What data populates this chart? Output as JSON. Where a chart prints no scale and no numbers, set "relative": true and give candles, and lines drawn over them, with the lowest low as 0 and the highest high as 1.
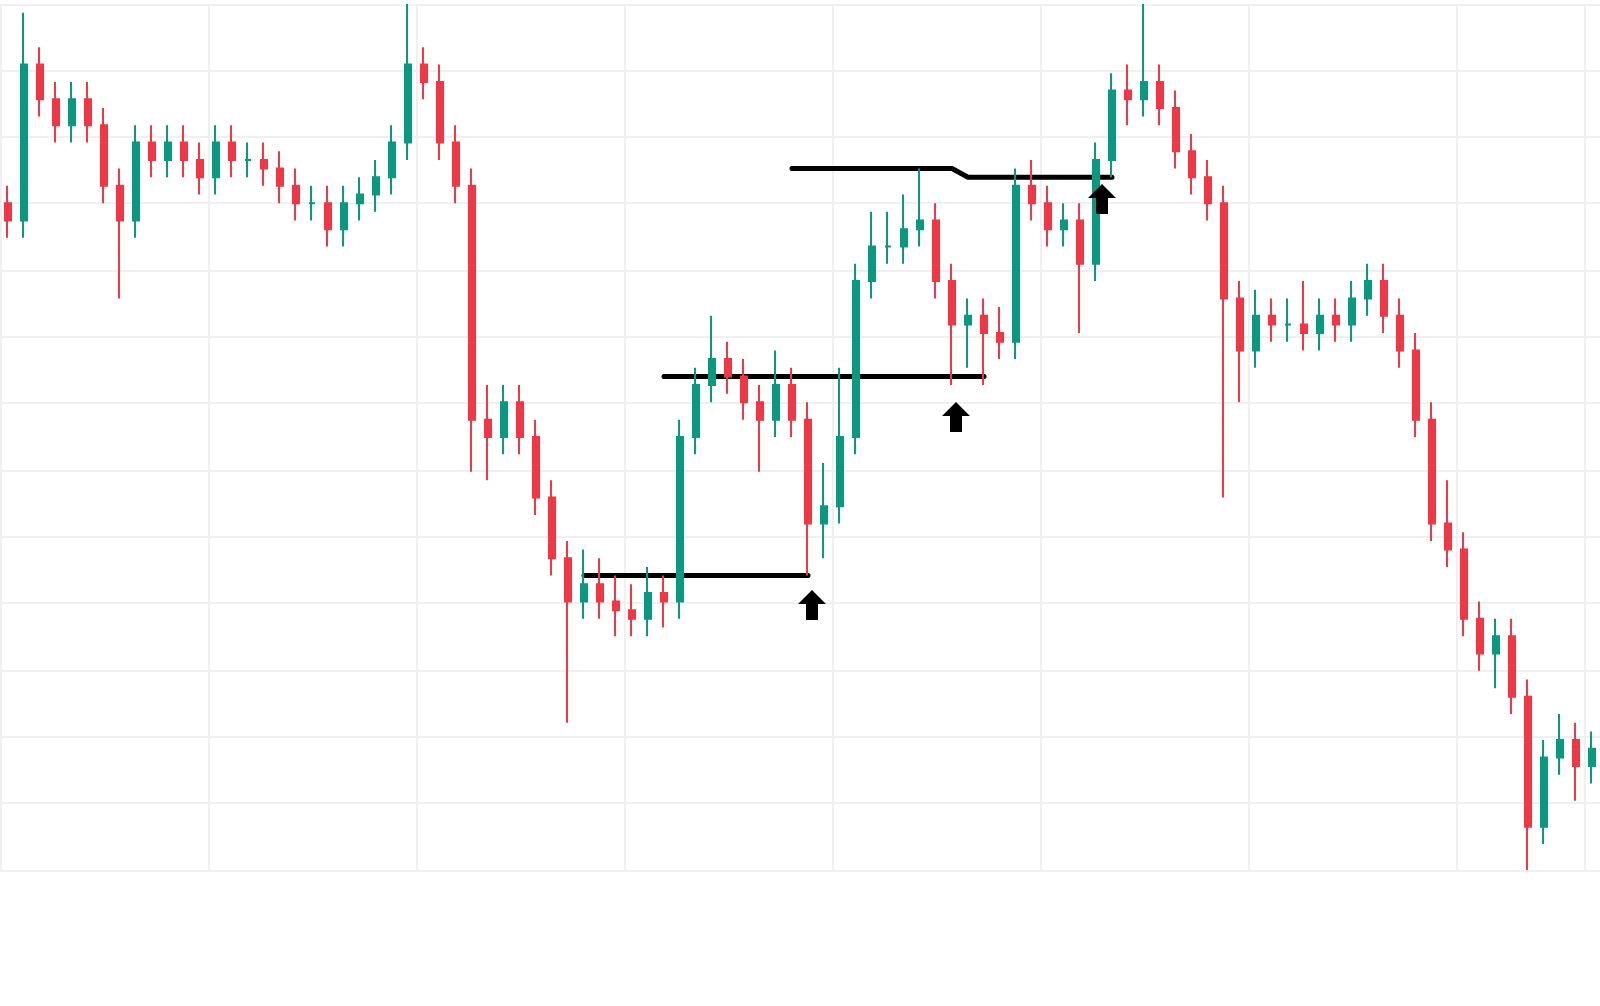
{
  "chart_data": {
    "type": "candlestick",
    "relative": true,
    "grid": true,
    "colors": [
      "#f23645",
      "#089981",
      "#f23645",
      "#f23645",
      "#089981",
      "#f23645",
      "#f23645",
      "#f23645",
      "#089981",
      "#f23645",
      "#089981",
      "#f23645",
      "#f23645",
      "#089981",
      "#f23645",
      "#089981",
      "#f23645",
      "#f23645",
      "#f23645",
      "#089981",
      "#f23645",
      "#089981",
      "#089981",
      "#089981",
      "#089981",
      "#089981",
      "#f23645",
      "#f23645",
      "#f23645",
      "#f23645",
      "#f23645",
      "#089981",
      "#f23645",
      "#f23645",
      "#f23645",
      "#f23645",
      "#089981",
      "#f23645",
      "#f23645",
      "#f23645",
      "#089981",
      "#f23645",
      "#089981",
      "#089981",
      "#089981",
      "#f23645",
      "#f23645",
      "#f23645",
      "#089981",
      "#f23645",
      "#f23645",
      "#089981",
      "#089981",
      "#089981",
      "#089981",
      "#089981",
      "#089981",
      "#089981",
      "#f23645",
      "#f23645",
      "#089981",
      "#f23645",
      "#f23645",
      "#089981",
      "#f23645",
      "#f23645",
      "#089981",
      "#f23645",
      "#089981",
      "#089981",
      "#f23645",
      "#089981",
      "#f23645",
      "#f23645",
      "#f23645",
      "#f23645",
      "#f23645",
      "#f23645",
      "#089981",
      "#f23645",
      "#089981",
      "#f23645",
      "#089981",
      "#f23645",
      "#089981",
      "#089981",
      "#f23645",
      "#f23645",
      "#f23645",
      "#f23645",
      "#f23645",
      "#f23645",
      "#f23645",
      "#089981",
      "#f23645",
      "#f23645",
      "#089981",
      "#089981",
      "#f23645",
      "#089981"
    ],
    "categories": [
      null,
      null,
      null,
      null,
      null,
      null,
      null,
      null,
      null,
      null,
      null,
      null,
      null,
      null,
      null,
      null,
      null,
      null,
      null,
      null,
      null,
      null,
      null,
      null,
      null,
      null,
      null,
      null,
      null,
      null,
      null,
      null,
      null,
      null,
      null,
      null,
      null,
      null,
      null,
      null,
      null,
      null,
      null,
      null,
      null,
      null,
      null,
      null,
      null,
      null,
      null,
      null,
      null,
      null,
      null,
      null,
      null,
      null,
      null,
      null,
      null,
      null,
      null,
      null,
      null,
      null,
      null,
      null,
      null,
      null,
      null,
      null,
      null,
      null,
      null,
      null,
      null,
      null,
      null,
      null,
      null,
      null,
      null,
      null,
      null,
      null,
      null,
      null,
      null,
      null,
      null,
      null,
      null,
      null,
      null,
      null,
      null,
      null,
      null,
      null
    ],
    "ohlc": [
      [
        0.77,
        0.79,
        0.73,
        0.75
      ],
      [
        0.75,
        0.99,
        0.73,
        0.93
      ],
      [
        0.93,
        0.95,
        0.87,
        0.89
      ],
      [
        0.89,
        0.91,
        0.84,
        0.86
      ],
      [
        0.86,
        0.91,
        0.84,
        0.89
      ],
      [
        0.89,
        0.91,
        0.84,
        0.86
      ],
      [
        0.86,
        0.88,
        0.77,
        0.79
      ],
      [
        0.79,
        0.81,
        0.66,
        0.75
      ],
      [
        0.75,
        0.86,
        0.73,
        0.84
      ],
      [
        0.84,
        0.86,
        0.8,
        0.82
      ],
      [
        0.82,
        0.86,
        0.8,
        0.84
      ],
      [
        0.84,
        0.86,
        0.8,
        0.82
      ],
      [
        0.82,
        0.84,
        0.78,
        0.8
      ],
      [
        0.8,
        0.86,
        0.78,
        0.84
      ],
      [
        0.84,
        0.86,
        0.8,
        0.82
      ],
      [
        0.82,
        0.84,
        0.8,
        0.82
      ],
      [
        0.82,
        0.84,
        0.79,
        0.81
      ],
      [
        0.81,
        0.83,
        0.77,
        0.79
      ],
      [
        0.79,
        0.81,
        0.75,
        0.77
      ],
      [
        0.77,
        0.79,
        0.75,
        0.77
      ],
      [
        0.77,
        0.79,
        0.72,
        0.74
      ],
      [
        0.74,
        0.79,
        0.72,
        0.77
      ],
      [
        0.77,
        0.8,
        0.75,
        0.78
      ],
      [
        0.78,
        0.82,
        0.76,
        0.8
      ],
      [
        0.8,
        0.86,
        0.78,
        0.84
      ],
      [
        0.84,
        1,
        0.82,
        0.93
      ],
      [
        0.93,
        0.95,
        0.89,
        0.91
      ],
      [
        0.91,
        0.93,
        0.82,
        0.84
      ],
      [
        0.84,
        0.86,
        0.77,
        0.79
      ],
      [
        0.79,
        0.81,
        0.46,
        0.52
      ],
      [
        0.52,
        0.56,
        0.45,
        0.5
      ],
      [
        0.5,
        0.56,
        0.48,
        0.54
      ],
      [
        0.54,
        0.56,
        0.48,
        0.5
      ],
      [
        0.5,
        0.52,
        0.41,
        0.43
      ],
      [
        0.43,
        0.45,
        0.34,
        0.36
      ],
      [
        0.36,
        0.38,
        0.17,
        0.31
      ],
      [
        0.31,
        0.37,
        0.29,
        0.33
      ],
      [
        0.33,
        0.36,
        0.29,
        0.31
      ],
      [
        0.31,
        0.34,
        0.27,
        0.3
      ],
      [
        0.3,
        0.33,
        0.27,
        0.29
      ],
      [
        0.29,
        0.35,
        0.27,
        0.32
      ],
      [
        0.32,
        0.34,
        0.28,
        0.31
      ],
      [
        0.31,
        0.52,
        0.29,
        0.5
      ],
      [
        0.5,
        0.58,
        0.48,
        0.56
      ],
      [
        0.56,
        0.64,
        0.54,
        0.59
      ],
      [
        0.59,
        0.61,
        0.55,
        0.57
      ],
      [
        0.57,
        0.59,
        0.52,
        0.54
      ],
      [
        0.54,
        0.56,
        0.46,
        0.52
      ],
      [
        0.52,
        0.6,
        0.5,
        0.56
      ],
      [
        0.56,
        0.58,
        0.5,
        0.52
      ],
      [
        0.52,
        0.54,
        0.34,
        0.4
      ],
      [
        0.4,
        0.47,
        0.36,
        0.42
      ],
      [
        0.42,
        0.58,
        0.4,
        0.5
      ],
      [
        0.5,
        0.7,
        0.48,
        0.68
      ],
      [
        0.68,
        0.76,
        0.66,
        0.72
      ],
      [
        0.72,
        0.76,
        0.7,
        0.72
      ],
      [
        0.72,
        0.78,
        0.7,
        0.74
      ],
      [
        0.74,
        0.81,
        0.72,
        0.75
      ],
      [
        0.75,
        0.77,
        0.66,
        0.68
      ],
      [
        0.68,
        0.7,
        0.56,
        0.63
      ],
      [
        0.63,
        0.66,
        0.58,
        0.64
      ],
      [
        0.64,
        0.66,
        0.56,
        0.62
      ],
      [
        0.62,
        0.65,
        0.59,
        0.61
      ],
      [
        0.61,
        0.81,
        0.59,
        0.79
      ],
      [
        0.79,
        0.82,
        0.75,
        0.77
      ],
      [
        0.77,
        0.79,
        0.72,
        0.74
      ],
      [
        0.74,
        0.77,
        0.72,
        0.75
      ],
      [
        0.75,
        0.77,
        0.62,
        0.7
      ],
      [
        0.7,
        0.84,
        0.68,
        0.82
      ],
      [
        0.82,
        0.92,
        0.8,
        0.9
      ],
      [
        0.9,
        0.93,
        0.86,
        0.89
      ],
      [
        0.89,
        1,
        0.87,
        0.91
      ],
      [
        0.91,
        0.93,
        0.86,
        0.88
      ],
      [
        0.88,
        0.9,
        0.81,
        0.83
      ],
      [
        0.83,
        0.85,
        0.78,
        0.8
      ],
      [
        0.8,
        0.82,
        0.75,
        0.77
      ],
      [
        0.77,
        0.79,
        0.43,
        0.66
      ],
      [
        0.66,
        0.68,
        0.54,
        0.6
      ],
      [
        0.6,
        0.67,
        0.58,
        0.64
      ],
      [
        0.64,
        0.66,
        0.61,
        0.63
      ],
      [
        0.63,
        0.66,
        0.61,
        0.63
      ],
      [
        0.63,
        0.68,
        0.6,
        0.62
      ],
      [
        0.62,
        0.66,
        0.6,
        0.64
      ],
      [
        0.64,
        0.66,
        0.61,
        0.63
      ],
      [
        0.63,
        0.68,
        0.61,
        0.66
      ],
      [
        0.66,
        0.7,
        0.64,
        0.68
      ],
      [
        0.68,
        0.7,
        0.62,
        0.64
      ],
      [
        0.64,
        0.66,
        0.58,
        0.6
      ],
      [
        0.6,
        0.62,
        0.5,
        0.52
      ],
      [
        0.52,
        0.54,
        0.38,
        0.4
      ],
      [
        0.4,
        0.45,
        0.35,
        0.37
      ],
      [
        0.37,
        0.39,
        0.27,
        0.29
      ],
      [
        0.29,
        0.31,
        0.23,
        0.25
      ],
      [
        0.25,
        0.29,
        0.21,
        0.27
      ],
      [
        0.27,
        0.29,
        0.18,
        0.2
      ],
      [
        0.2,
        0.22,
        0,
        0.05
      ],
      [
        0.05,
        0.15,
        0.03,
        0.13
      ],
      [
        0.13,
        0.18,
        0.11,
        0.15
      ],
      [
        0.15,
        0.17,
        0.08,
        0.12
      ],
      [
        0.12,
        0.16,
        0.1,
        0.14
      ]
    ],
    "series": [
      {
        "type": "line",
        "color": "#000000",
        "values": [
          null,
          null,
          null,
          null,
          null,
          null,
          null,
          null,
          null,
          null,
          null,
          null,
          null,
          null,
          null,
          null,
          null,
          null,
          null,
          null,
          null,
          null,
          null,
          null,
          null,
          null,
          null,
          null,
          null,
          null,
          null,
          null,
          null,
          null,
          null,
          null,
          0.34,
          0.34,
          0.34,
          0.34,
          0.34,
          0.34,
          0.34,
          0.34,
          0.34,
          0.34,
          0.34,
          0.34,
          0.34,
          0.34,
          0.34,
          null,
          null,
          null,
          null,
          null,
          null,
          null,
          null,
          null,
          null,
          null,
          null,
          null,
          null,
          null,
          null,
          null,
          null,
          null,
          null,
          null,
          null,
          null,
          null,
          null,
          null,
          null,
          null,
          null,
          null,
          null,
          null,
          null,
          null,
          null,
          null,
          null,
          null,
          null,
          null,
          null,
          null,
          null,
          null,
          null,
          null,
          null,
          null,
          null
        ]
      },
      {
        "type": "line",
        "color": "#000000",
        "values": [
          null,
          null,
          null,
          null,
          null,
          null,
          null,
          null,
          null,
          null,
          null,
          null,
          null,
          null,
          null,
          null,
          null,
          null,
          null,
          null,
          null,
          null,
          null,
          null,
          null,
          null,
          null,
          null,
          null,
          null,
          null,
          null,
          null,
          null,
          null,
          null,
          null,
          null,
          null,
          null,
          null,
          0.57,
          0.57,
          0.57,
          0.57,
          0.57,
          0.57,
          0.57,
          0.57,
          0.57,
          0.57,
          0.57,
          0.57,
          0.57,
          0.57,
          0.57,
          0.57,
          0.57,
          0.57,
          0.57,
          0.57,
          0.57,
          null,
          null,
          null,
          null,
          null,
          null,
          null,
          null,
          null,
          null,
          null,
          null,
          null,
          null,
          null,
          null,
          null,
          null,
          null,
          null,
          null,
          null,
          null,
          null,
          null,
          null,
          null,
          null,
          null,
          null,
          null,
          null,
          null,
          null,
          null,
          null,
          null,
          null
        ]
      },
      {
        "type": "line",
        "color": "#000000",
        "values": [
          null,
          null,
          null,
          null,
          null,
          null,
          null,
          null,
          null,
          null,
          null,
          null,
          null,
          null,
          null,
          null,
          null,
          null,
          null,
          null,
          null,
          null,
          null,
          null,
          null,
          null,
          null,
          null,
          null,
          null,
          null,
          null,
          null,
          null,
          null,
          null,
          null,
          null,
          null,
          null,
          null,
          null,
          null,
          null,
          null,
          null,
          null,
          null,
          null,
          0.81,
          0.81,
          0.81,
          0.81,
          0.81,
          0.81,
          0.81,
          0.81,
          0.81,
          0.81,
          0.81,
          0.8,
          0.8,
          0.8,
          0.8,
          0.8,
          0.8,
          0.8,
          0.8,
          0.8,
          0.8,
          null,
          null,
          null,
          null,
          null,
          null,
          null,
          null,
          null,
          null,
          null,
          null,
          null,
          null,
          null,
          null,
          null,
          null,
          null,
          null,
          null,
          null,
          null,
          null,
          null,
          null,
          null,
          null,
          null,
          null
        ]
      }
    ]
  }
}
